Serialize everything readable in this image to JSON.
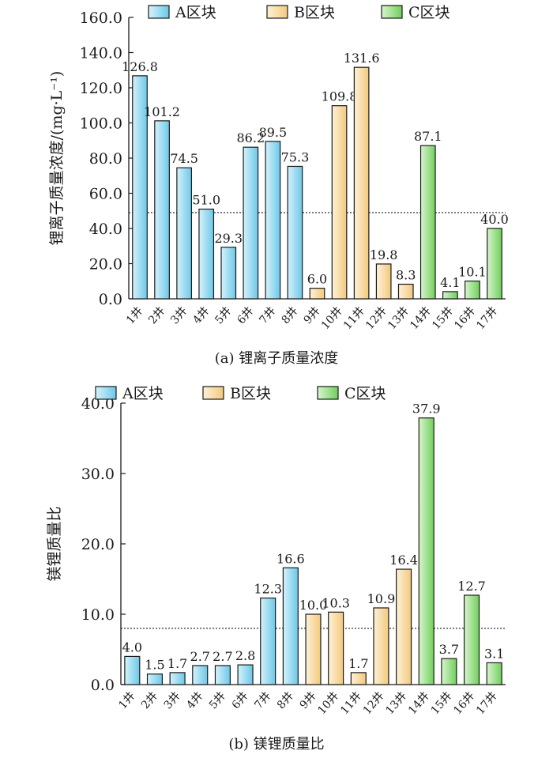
{
  "chart_data": [
    {
      "type": "bar",
      "caption": "(a) 锂离子质量浓度",
      "ylabel": "锂离子质量浓度/(mg·L⁻¹)",
      "ylim": [
        0,
        160
      ],
      "yticks": [
        "0.0",
        "20.0",
        "40.0",
        "60.0",
        "80.0",
        "100.0",
        "120.0",
        "140.0",
        "160.0"
      ],
      "categories": [
        "1井",
        "2井",
        "3井",
        "4井",
        "5井",
        "6井",
        "7井",
        "8井",
        "9井",
        "10井",
        "11井",
        "12井",
        "13井",
        "14井",
        "15井",
        "16井",
        "17井"
      ],
      "values": [
        126.8,
        101.2,
        74.5,
        51.0,
        29.3,
        86.2,
        89.5,
        75.3,
        6.0,
        109.8,
        131.6,
        19.8,
        8.3,
        87.1,
        4.1,
        10.1,
        40.0
      ],
      "value_labels": [
        "126.8",
        "101.2",
        "74.5",
        "51.0",
        "29.3",
        "86.2",
        "89.5",
        "75.3",
        "6.0",
        "109.8",
        "131.6",
        "19.8",
        "8.3",
        "87.1",
        "4.1",
        "10.1",
        "40.0"
      ],
      "groups": [
        "A",
        "A",
        "A",
        "A",
        "A",
        "A",
        "A",
        "A",
        "B",
        "B",
        "B",
        "B",
        "B",
        "C",
        "C",
        "C",
        "C"
      ],
      "reference_line": 49,
      "legend": [
        {
          "key": "A",
          "name": "A区块"
        },
        {
          "key": "B",
          "name": "B区块"
        },
        {
          "key": "C",
          "name": "C区块"
        }
      ],
      "legend_position": "top",
      "grid": false
    },
    {
      "type": "bar",
      "caption": "(b) 镁锂质量比",
      "ylabel": "镁锂质量比",
      "ylim": [
        0,
        40
      ],
      "yticks": [
        "0.0",
        "10.0",
        "20.0",
        "30.0",
        "40.0"
      ],
      "categories": [
        "1井",
        "2井",
        "3井",
        "4井",
        "5井",
        "6井",
        "7井",
        "8井",
        "9井",
        "10井",
        "11井",
        "12井",
        "13井",
        "14井",
        "15井",
        "16井",
        "17井"
      ],
      "values": [
        4.0,
        1.5,
        1.7,
        2.7,
        2.7,
        2.8,
        12.3,
        16.6,
        10.0,
        10.3,
        1.7,
        10.9,
        16.4,
        37.9,
        3.7,
        12.7,
        3.1
      ],
      "value_labels": [
        "4.0",
        "1.5",
        "1.7",
        "2.7",
        "2.7",
        "2.8",
        "12.3",
        "16.6",
        "10.0",
        "10.3",
        "1.7",
        "10.9",
        "16.4",
        "37.9",
        "3.7",
        "12.7",
        "3.1"
      ],
      "groups": [
        "A",
        "A",
        "A",
        "A",
        "A",
        "A",
        "A",
        "A",
        "B",
        "B",
        "B",
        "B",
        "B",
        "C",
        "C",
        "C",
        "C"
      ],
      "reference_line": 8,
      "legend": [
        {
          "key": "A",
          "name": "A区块"
        },
        {
          "key": "B",
          "name": "B区块"
        },
        {
          "key": "C",
          "name": "C区块"
        }
      ],
      "legend_position": "top",
      "grid": false
    }
  ],
  "colors": {
    "A": {
      "fill": "#8fd6ef",
      "light": "#d6f2fb",
      "stroke": "#1a1a1a"
    },
    "B": {
      "fill": "#f7d59a",
      "light": "#fdf1d9",
      "stroke": "#1a1a1a"
    },
    "C": {
      "fill": "#8fd97a",
      "light": "#d9f4cf",
      "stroke": "#1a1a1a"
    },
    "axis": "#1a1a1a"
  }
}
